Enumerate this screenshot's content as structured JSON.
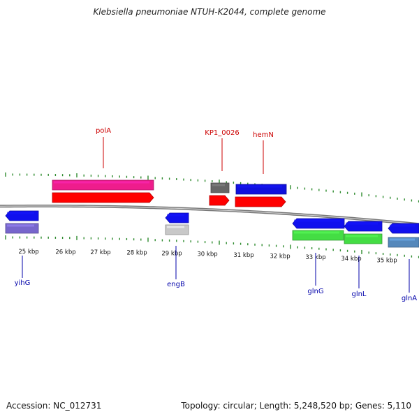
{
  "title": "Klebsiella pneumoniae NTUH-K2044, complete genome",
  "footer": {
    "accession": "Accession: NC_012731",
    "summary": "Topology: circular; Length: 5,248,520 bp; Genes: 5,110"
  },
  "colors": {
    "backbone": "#8c8c8c",
    "ticks": "#2e8b2e",
    "label_top": "#cc0000",
    "label_bottom": "#0000aa"
  },
  "scale_labels": [
    "25 kbp",
    "26 kbp",
    "27 kbp",
    "28 kbp",
    "29 kbp",
    "30 kbp",
    "31 kbp",
    "32 kbp",
    "33 kbp",
    "34 kbp",
    "35 kbp"
  ],
  "gene_labels": [
    {
      "text": "polA",
      "strand": "top"
    },
    {
      "text": "KP1_0026",
      "strand": "top"
    },
    {
      "text": "hemN",
      "strand": "top"
    },
    {
      "text": "yihG",
      "strand": "bottom"
    },
    {
      "text": "engB",
      "strand": "bottom"
    },
    {
      "text": "glnG",
      "strand": "bottom"
    },
    {
      "text": "glnL",
      "strand": "bottom"
    },
    {
      "text": "glnA",
      "strand": "bottom"
    }
  ],
  "features": [
    {
      "name": "feature-fwd-edge",
      "color": "#ff0000",
      "dir": "fwd"
    },
    {
      "name": "polA-top-bar",
      "color": "#ee1d8c",
      "dir": "none"
    },
    {
      "name": "polA-arrow",
      "color": "#ff0000",
      "dir": "fwd"
    },
    {
      "name": "KP1_0026-top-bar",
      "color": "#666666",
      "dir": "none"
    },
    {
      "name": "KP1_0026-arrow",
      "color": "#ff0000",
      "dir": "fwd"
    },
    {
      "name": "hemN-top-bar",
      "color": "#1010dd",
      "dir": "none"
    },
    {
      "name": "hemN-arrow",
      "color": "#ff0000",
      "dir": "fwd"
    },
    {
      "name": "yihG-arrow",
      "color": "#1010ee",
      "dir": "rev"
    },
    {
      "name": "yihG-bottom-bar",
      "color": "#7766cc",
      "dir": "none"
    },
    {
      "name": "engB-arrow",
      "color": "#1010ee",
      "dir": "rev"
    },
    {
      "name": "engB-bottom-bar",
      "color": "#c8c8c8",
      "dir": "none"
    },
    {
      "name": "glnG-arrow",
      "color": "#1010ee",
      "dir": "rev"
    },
    {
      "name": "glnG-bottom-bar",
      "color": "#44dd44",
      "dir": "none"
    },
    {
      "name": "glnL-arrow",
      "color": "#1010ee",
      "dir": "rev"
    },
    {
      "name": "glnL-bottom-bar",
      "color": "#44dd44",
      "dir": "none"
    },
    {
      "name": "glnA-arrow",
      "color": "#1010ee",
      "dir": "rev"
    },
    {
      "name": "glnA-bottom-bar",
      "color": "#5588bb",
      "dir": "none"
    }
  ]
}
